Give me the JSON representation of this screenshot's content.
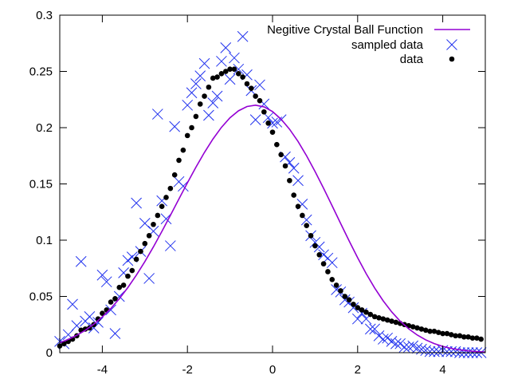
{
  "chart_data": {
    "type": "scatter",
    "title": "",
    "xlabel": "",
    "ylabel": "",
    "xlim": [
      -5,
      5
    ],
    "ylim": [
      0,
      0.3
    ],
    "x_ticks": [
      -4,
      -2,
      0,
      2,
      4
    ],
    "y_ticks": [
      0,
      0.05,
      0.1,
      0.15,
      0.2,
      0.25,
      0.3
    ],
    "x_tick_labels": [
      "-4",
      "-2",
      "0",
      "2",
      "4"
    ],
    "y_tick_labels": [
      "0",
      "0.05",
      "0.1",
      "0.15",
      "0.2",
      "0.25",
      "0.3"
    ],
    "grid": false,
    "legend_position": "top-right",
    "series": [
      {
        "name": "Negitive Crystal Ball Function",
        "kind": "line",
        "color": "#9400d3",
        "x": [
          -5.0,
          -4.8,
          -4.6,
          -4.4,
          -4.2,
          -4.0,
          -3.8,
          -3.6,
          -3.4,
          -3.2,
          -3.0,
          -2.8,
          -2.6,
          -2.4,
          -2.2,
          -2.0,
          -1.8,
          -1.6,
          -1.4,
          -1.2,
          -1.0,
          -0.8,
          -0.6,
          -0.4,
          -0.2,
          0.0,
          0.2,
          0.4,
          0.6,
          0.8,
          1.0,
          1.2,
          1.4,
          1.6,
          1.8,
          2.0,
          2.2,
          2.4,
          2.6,
          2.8,
          3.0,
          3.2,
          3.4,
          3.6,
          3.8,
          4.0,
          4.2,
          4.4,
          4.6,
          4.8,
          5.0
        ],
        "y": [
          0.0089,
          0.0118,
          0.0155,
          0.0199,
          0.0254,
          0.0318,
          0.0393,
          0.048,
          0.0579,
          0.0689,
          0.081,
          0.094,
          0.1078,
          0.1221,
          0.1366,
          0.151,
          0.1649,
          0.178,
          0.1899,
          0.2003,
          0.2088,
          0.215,
          0.2188,
          0.22,
          0.2185,
          0.2143,
          0.2076,
          0.1986,
          0.1877,
          0.175,
          0.161,
          0.1461,
          0.1306,
          0.1149,
          0.0994,
          0.0844,
          0.0703,
          0.0575,
          0.0461,
          0.0363,
          0.028,
          0.0212,
          0.0157,
          0.0114,
          0.0081,
          0.0056,
          0.0038,
          0.0025,
          0.0016,
          0.001,
          0.0006
        ]
      },
      {
        "name": "sampled data",
        "kind": "points",
        "marker": "cross",
        "color": "#2233ee",
        "x": [
          -5.0,
          -4.9,
          -4.8,
          -4.7,
          -4.6,
          -4.5,
          -4.4,
          -4.3,
          -4.2,
          -4.1,
          -4.0,
          -3.9,
          -3.8,
          -3.7,
          -3.6,
          -3.5,
          -3.4,
          -3.3,
          -3.2,
          -3.1,
          -3.0,
          -2.9,
          -2.8,
          -2.7,
          -2.6,
          -2.5,
          -2.4,
          -2.3,
          -2.2,
          -2.1,
          -2.0,
          -1.9,
          -1.8,
          -1.7,
          -1.6,
          -1.5,
          -1.4,
          -1.3,
          -1.2,
          -1.1,
          -1.0,
          -0.9,
          -0.8,
          -0.7,
          -0.6,
          -0.5,
          -0.4,
          -0.3,
          -0.2,
          -0.1,
          0.0,
          0.1,
          0.2,
          0.3,
          0.4,
          0.5,
          0.6,
          0.7,
          0.8,
          0.9,
          1.0,
          1.1,
          1.2,
          1.3,
          1.4,
          1.5,
          1.6,
          1.7,
          1.8,
          1.9,
          2.0,
          2.1,
          2.2,
          2.3,
          2.4,
          2.5,
          2.6,
          2.7,
          2.8,
          2.9,
          3.0,
          3.1,
          3.2,
          3.3,
          3.4,
          3.5,
          3.6,
          3.7,
          3.8,
          3.9,
          4.0,
          4.1,
          4.2,
          4.3,
          4.4,
          4.5,
          4.6,
          4.7,
          4.8,
          4.9
        ],
        "y": [
          0.01,
          0.008,
          0.016,
          0.043,
          0.024,
          0.081,
          0.028,
          0.032,
          0.022,
          0.027,
          0.069,
          0.063,
          0.038,
          0.017,
          0.05,
          0.071,
          0.082,
          0.085,
          0.133,
          0.09,
          0.115,
          0.066,
          0.108,
          0.212,
          0.135,
          0.119,
          0.095,
          0.201,
          0.152,
          0.148,
          0.22,
          0.231,
          0.239,
          0.246,
          0.257,
          0.211,
          0.222,
          0.228,
          0.259,
          0.271,
          0.243,
          0.262,
          0.252,
          0.281,
          0.247,
          0.233,
          0.207,
          0.238,
          0.221,
          0.209,
          0.204,
          0.205,
          0.207,
          0.174,
          0.169,
          0.164,
          0.153,
          0.132,
          0.118,
          0.104,
          0.098,
          0.094,
          0.087,
          0.084,
          0.08,
          0.056,
          0.054,
          0.047,
          0.045,
          0.04,
          0.03,
          0.035,
          0.03,
          0.021,
          0.021,
          0.015,
          0.012,
          0.013,
          0.01,
          0.008,
          0.008,
          0.005,
          0.005,
          0.006,
          0.004,
          0.003,
          0.002,
          0.001,
          0.001,
          0.001,
          0.002,
          0.001,
          0.001,
          0.001,
          0.0,
          0.0,
          0.0,
          0.0,
          0.0,
          0.0
        ]
      },
      {
        "name": "data",
        "kind": "points",
        "marker": "dot",
        "color": "#000000",
        "x": [
          -5.0,
          -4.9,
          -4.8,
          -4.7,
          -4.6,
          -4.5,
          -4.4,
          -4.3,
          -4.2,
          -4.1,
          -4.0,
          -3.9,
          -3.8,
          -3.7,
          -3.6,
          -3.5,
          -3.4,
          -3.3,
          -3.2,
          -3.1,
          -3.0,
          -2.9,
          -2.8,
          -2.7,
          -2.6,
          -2.5,
          -2.4,
          -2.3,
          -2.2,
          -2.1,
          -2.0,
          -1.9,
          -1.8,
          -1.7,
          -1.6,
          -1.5,
          -1.4,
          -1.3,
          -1.2,
          -1.1,
          -1.0,
          -0.9,
          -0.8,
          -0.7,
          -0.6,
          -0.5,
          -0.4,
          -0.3,
          -0.2,
          -0.1,
          0.0,
          0.1,
          0.2,
          0.3,
          0.4,
          0.5,
          0.6,
          0.7,
          0.8,
          0.9,
          1.0,
          1.1,
          1.2,
          1.3,
          1.4,
          1.5,
          1.6,
          1.7,
          1.8,
          1.9,
          2.0,
          2.1,
          2.2,
          2.3,
          2.4,
          2.5,
          2.6,
          2.7,
          2.8,
          2.9,
          3.0,
          3.1,
          3.2,
          3.3,
          3.4,
          3.5,
          3.6,
          3.7,
          3.8,
          3.9,
          4.0,
          4.1,
          4.2,
          4.3,
          4.4,
          4.5,
          4.6,
          4.7,
          4.8,
          4.9
        ],
        "y": [
          0.006,
          0.008,
          0.01,
          0.012,
          0.015,
          0.02,
          0.021,
          0.022,
          0.025,
          0.03,
          0.035,
          0.038,
          0.045,
          0.048,
          0.058,
          0.06,
          0.068,
          0.073,
          0.083,
          0.09,
          0.097,
          0.104,
          0.114,
          0.122,
          0.13,
          0.138,
          0.146,
          0.158,
          0.171,
          0.18,
          0.193,
          0.2,
          0.21,
          0.221,
          0.228,
          0.236,
          0.244,
          0.245,
          0.248,
          0.25,
          0.252,
          0.252,
          0.248,
          0.245,
          0.239,
          0.235,
          0.228,
          0.224,
          0.214,
          0.204,
          0.196,
          0.185,
          0.176,
          0.166,
          0.153,
          0.14,
          0.13,
          0.122,
          0.113,
          0.104,
          0.095,
          0.087,
          0.079,
          0.072,
          0.065,
          0.06,
          0.055,
          0.05,
          0.047,
          0.043,
          0.04,
          0.038,
          0.036,
          0.034,
          0.032,
          0.031,
          0.03,
          0.029,
          0.028,
          0.027,
          0.026,
          0.025,
          0.024,
          0.023,
          0.022,
          0.021,
          0.02,
          0.019,
          0.019,
          0.018,
          0.017,
          0.017,
          0.016,
          0.015,
          0.015,
          0.014,
          0.014,
          0.013,
          0.013,
          0.012
        ]
      }
    ]
  }
}
